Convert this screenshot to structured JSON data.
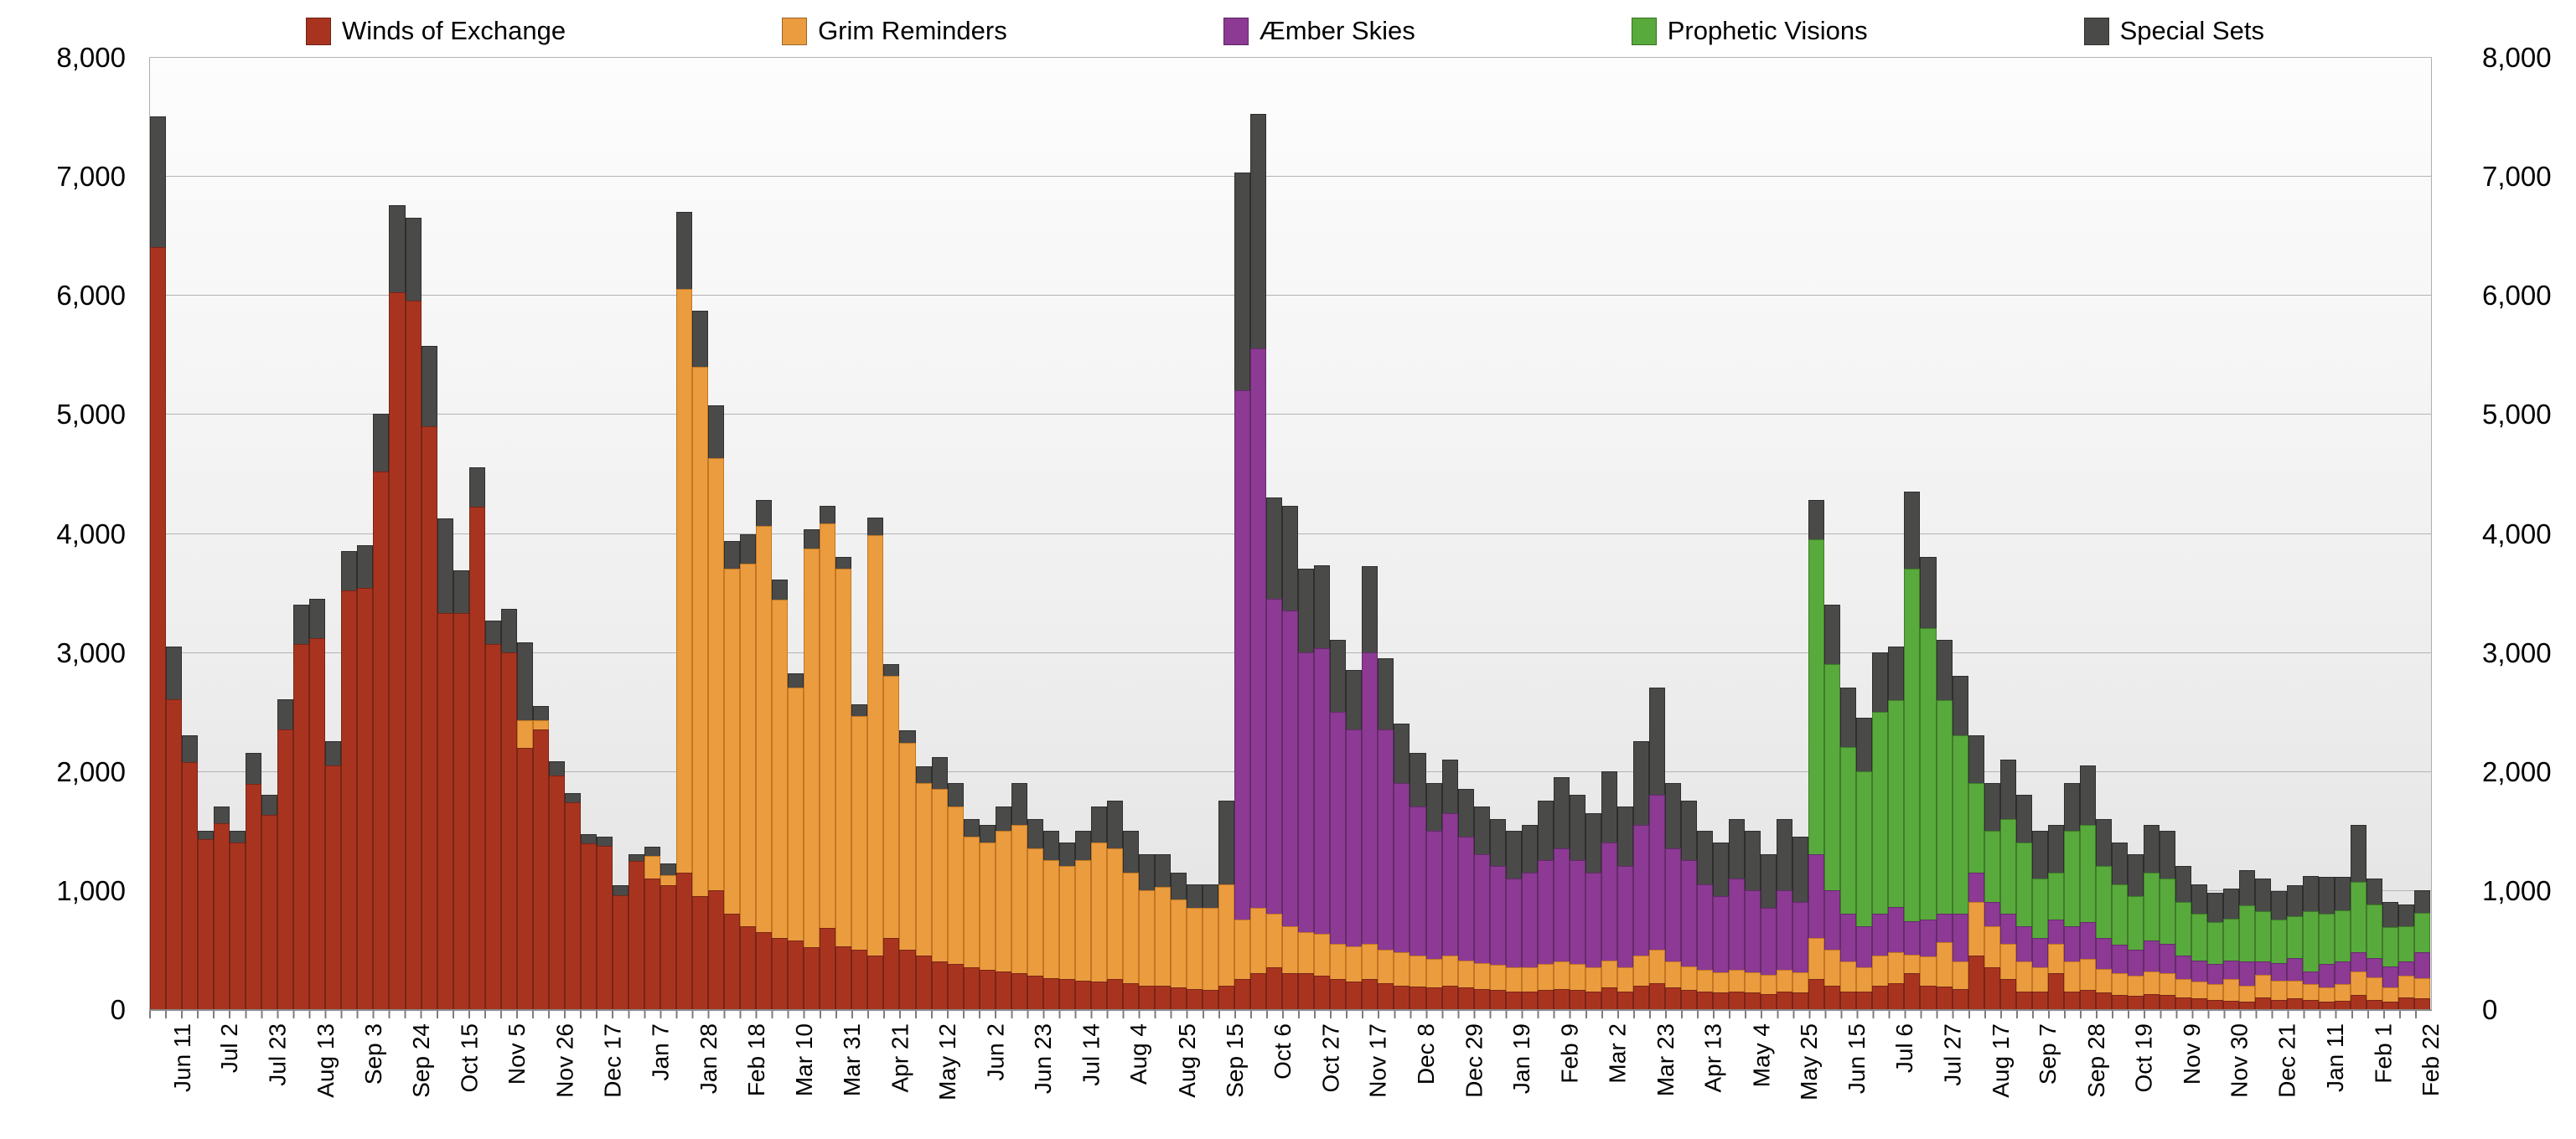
{
  "chart_data": {
    "type": "bar",
    "stacked": true,
    "title": "",
    "xlabel": "",
    "ylabel": "",
    "ylim": [
      0,
      8000
    ],
    "y_tick_step": 1000,
    "y_tick_labels": [
      "0",
      "1,000",
      "2,000",
      "3,000",
      "4,000",
      "5,000",
      "6,000",
      "7,000",
      "8,000"
    ],
    "grid": true,
    "legend_position": "top",
    "x_label_every": 3,
    "x_tick_labels": [
      "Jun 11",
      "Jul 2",
      "Jul 23",
      "Aug 13",
      "Sep 3",
      "Sep 24",
      "Oct 15",
      "Nov 5",
      "Nov 26",
      "Dec 17",
      "Jan 7",
      "Jan 28",
      "Feb 18",
      "Mar 10",
      "Mar 31",
      "Apr 21",
      "May 12",
      "Jun 2",
      "Jun 23",
      "Jul 14",
      "Aug 4",
      "Aug 25",
      "Sep 15",
      "Oct 6",
      "Oct 27",
      "Nov 17",
      "Dec 8",
      "Dec 29",
      "Jan 19",
      "Feb 9",
      "Mar 2",
      "Mar 23",
      "Apr 13",
      "May 4",
      "May 25",
      "Jun 15",
      "Jul 6",
      "Jul 27",
      "Aug 17",
      "Sep 7",
      "Sep 28",
      "Oct 19",
      "Nov 9",
      "Nov 30",
      "Dec 21",
      "Jan 11",
      "Feb 1",
      "Feb 22"
    ],
    "series": [
      {
        "name": "Winds of Exchange",
        "color": "#A83420",
        "border": "#7a2415",
        "values": [
          6400,
          2600,
          2075,
          1430,
          1560,
          1400,
          1890,
          1630,
          2350,
          3070,
          3120,
          2050,
          3520,
          3540,
          4520,
          6020,
          5950,
          4900,
          3330,
          3325,
          4225,
          3070,
          2995,
          2195,
          2350,
          1960,
          1735,
          1390,
          1370,
          960,
          1245,
          1100,
          1040,
          1150,
          950,
          1000,
          800,
          700,
          650,
          600,
          580,
          520,
          680,
          530,
          500,
          450,
          600,
          500,
          450,
          400,
          380,
          350,
          330,
          320,
          300,
          280,
          260,
          250,
          240,
          230,
          250,
          220,
          200,
          200,
          180,
          170,
          160,
          200,
          250,
          300,
          350,
          300,
          300,
          280,
          250,
          230,
          250,
          220,
          200,
          190,
          180,
          200,
          180,
          170,
          160,
          150,
          150,
          160,
          170,
          160,
          150,
          180,
          150,
          200,
          220,
          180,
          160,
          150,
          140,
          150,
          140,
          130,
          150,
          140,
          250,
          200,
          150,
          150,
          200,
          220,
          300,
          200,
          190,
          170,
          450,
          350,
          250,
          150,
          150,
          300,
          150,
          160,
          140,
          120,
          110,
          130,
          120,
          100,
          90,
          80,
          70,
          60,
          100,
          80,
          90,
          80,
          60,
          70,
          120,
          80,
          60,
          100,
          90
        ]
      },
      {
        "name": "Grim Reminders",
        "color": "#EB9C3F",
        "border": "#c27722",
        "values": [
          0,
          0,
          0,
          0,
          0,
          0,
          0,
          0,
          0,
          0,
          0,
          0,
          0,
          0,
          0,
          0,
          0,
          0,
          0,
          0,
          0,
          0,
          0,
          235,
          80,
          0,
          0,
          0,
          0,
          0,
          0,
          185,
          85,
          4900,
          4450,
          3630,
          2900,
          3040,
          3410,
          2840,
          2120,
          3350,
          3400,
          3170,
          1960,
          3530,
          2200,
          1740,
          1450,
          1450,
          1320,
          1100,
          1070,
          1180,
          1250,
          1070,
          990,
          950,
          1010,
          1170,
          1100,
          930,
          800,
          830,
          740,
          680,
          690,
          850,
          500,
          550,
          450,
          400,
          350,
          350,
          300,
          300,
          300,
          280,
          280,
          260,
          240,
          250,
          230,
          220,
          210,
          200,
          200,
          220,
          230,
          220,
          200,
          230,
          200,
          250,
          280,
          220,
          200,
          180,
          170,
          180,
          170,
          160,
          180,
          170,
          350,
          300,
          250,
          200,
          250,
          260,
          160,
          240,
          370,
          230,
          450,
          350,
          300,
          250,
          200,
          250,
          250,
          260,
          200,
          180,
          170,
          190,
          180,
          150,
          140,
          130,
          180,
          140,
          190,
          160,
          150,
          130,
          120,
          140,
          200,
          190,
          120,
          180,
          170
        ]
      },
      {
        "name": "Æmber Skies",
        "color": "#8C3A94",
        "border": "#662a6c",
        "values": [
          0,
          0,
          0,
          0,
          0,
          0,
          0,
          0,
          0,
          0,
          0,
          0,
          0,
          0,
          0,
          0,
          0,
          0,
          0,
          0,
          0,
          0,
          0,
          0,
          0,
          0,
          0,
          0,
          0,
          0,
          0,
          0,
          0,
          0,
          0,
          0,
          0,
          0,
          0,
          0,
          0,
          0,
          0,
          0,
          0,
          0,
          0,
          0,
          0,
          0,
          0,
          0,
          0,
          0,
          0,
          0,
          0,
          0,
          0,
          0,
          0,
          0,
          0,
          0,
          0,
          0,
          0,
          0,
          4450,
          4700,
          2650,
          2650,
          2350,
          2400,
          1950,
          1820,
          2450,
          1850,
          1420,
          1250,
          1080,
          1200,
          1040,
          910,
          830,
          750,
          800,
          870,
          950,
          870,
          800,
          990,
          850,
          1100,
          1300,
          950,
          890,
          720,
          640,
          770,
          690,
          560,
          670,
          590,
          700,
          500,
          400,
          350,
          350,
          380,
          280,
          310,
          240,
          400,
          250,
          200,
          250,
          300,
          250,
          200,
          300,
          310,
          260,
          240,
          220,
          260,
          250,
          200,
          180,
          170,
          160,
          200,
          110,
          150,
          190,
          110,
          200,
          190,
          160,
          160,
          180,
          120,
          220
        ]
      },
      {
        "name": "Prophetic Visions",
        "color": "#58AA3C",
        "border": "#3e7d28",
        "values": [
          0,
          0,
          0,
          0,
          0,
          0,
          0,
          0,
          0,
          0,
          0,
          0,
          0,
          0,
          0,
          0,
          0,
          0,
          0,
          0,
          0,
          0,
          0,
          0,
          0,
          0,
          0,
          0,
          0,
          0,
          0,
          0,
          0,
          0,
          0,
          0,
          0,
          0,
          0,
          0,
          0,
          0,
          0,
          0,
          0,
          0,
          0,
          0,
          0,
          0,
          0,
          0,
          0,
          0,
          0,
          0,
          0,
          0,
          0,
          0,
          0,
          0,
          0,
          0,
          0,
          0,
          0,
          0,
          0,
          0,
          0,
          0,
          0,
          0,
          0,
          0,
          0,
          0,
          0,
          0,
          0,
          0,
          0,
          0,
          0,
          0,
          0,
          0,
          0,
          0,
          0,
          0,
          0,
          0,
          0,
          0,
          0,
          0,
          0,
          0,
          0,
          0,
          0,
          0,
          2650,
          1900,
          1400,
          1300,
          1700,
          1740,
          2960,
          2450,
          1800,
          1500,
          750,
          600,
          800,
          700,
          500,
          400,
          800,
          820,
          600,
          510,
          450,
          570,
          550,
          450,
          390,
          350,
          350,
          470,
          420,
          360,
          350,
          500,
          420,
          430,
          590,
          450,
          330,
          300,
          330
        ]
      },
      {
        "name": "Special Sets",
        "color": "#4A4A49",
        "border": "#2e2e2e",
        "values": [
          1100,
          450,
          225,
          70,
          140,
          100,
          260,
          170,
          250,
          330,
          330,
          200,
          330,
          360,
          480,
          735,
          700,
          670,
          790,
          365,
          325,
          195,
          370,
          650,
          120,
          120,
          80,
          80,
          80,
          80,
          60,
          82,
          100,
          650,
          470,
          440,
          230,
          250,
          220,
          170,
          120,
          160,
          150,
          100,
          100,
          150,
          100,
          100,
          140,
          270,
          200,
          150,
          150,
          200,
          350,
          250,
          250,
          200,
          250,
          300,
          400,
          350,
          300,
          270,
          230,
          200,
          200,
          700,
          1830,
          1970,
          850,
          880,
          700,
          700,
          600,
          500,
          720,
          600,
          500,
          450,
          400,
          450,
          400,
          400,
          400,
          400,
          400,
          500,
          600,
          550,
          500,
          600,
          500,
          700,
          900,
          550,
          500,
          450,
          450,
          500,
          500,
          450,
          600,
          550,
          330,
          500,
          500,
          450,
          500,
          450,
          650,
          600,
          500,
          500,
          400,
          400,
          500,
          400,
          400,
          400,
          400,
          500,
          400,
          350,
          350,
          400,
          400,
          300,
          250,
          250,
          250,
          300,
          280,
          240,
          260,
          300,
          310,
          280,
          480,
          220,
          210,
          180,
          190
        ]
      }
    ]
  }
}
